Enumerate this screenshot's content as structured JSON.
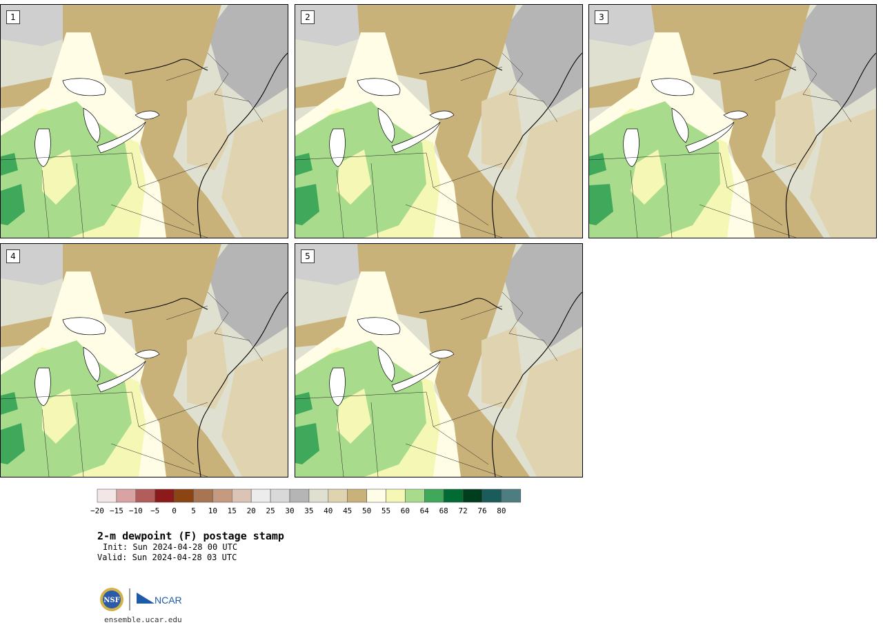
{
  "panels": [
    {
      "label": "1"
    },
    {
      "label": "2"
    },
    {
      "label": "3"
    },
    {
      "label": "4"
    },
    {
      "label": "5"
    }
  ],
  "colorbar": {
    "ticks": [
      "−20",
      "−15",
      "−10",
      "−5",
      "0",
      "5",
      "10",
      "15",
      "20",
      "25",
      "30",
      "35",
      "40",
      "45",
      "50",
      "55",
      "60",
      "64",
      "68",
      "72",
      "76",
      "80"
    ],
    "colors": [
      "#f2e6e6",
      "#d9a3a3",
      "#b35c5c",
      "#8c1a1a",
      "#8b4513",
      "#a87553",
      "#c49a80",
      "#dcc4b4",
      "#ececec",
      "#d9d9d9",
      "#b5b5b5",
      "#e0e0d0",
      "#e0d4b0",
      "#c9b27a",
      "#fffde6",
      "#f5f7b4",
      "#a8dc8c",
      "#3fa85a",
      "#006b32",
      "#003d1e",
      "#1a5c5c",
      "#4d7d80"
    ]
  },
  "title": "2-m dewpoint (F) postage stamp",
  "init": "Init: Sun 2024-04-28 00 UTC",
  "valid": "Valid: Sun 2024-04-28 03 UTC",
  "logos": {
    "nsf": "NSF",
    "ncar": "NCAR"
  },
  "footer": "ensemble.ucar.edu",
  "colors": {
    "green_dark": "#3fa85a",
    "green": "#a8dc8c",
    "yellow_light": "#f5f7b4",
    "cream": "#fffde6",
    "tan": "#c9b27a",
    "tan_light": "#e0d4b0",
    "gray_light": "#e0e0d0",
    "gray": "#b5b5b5"
  }
}
